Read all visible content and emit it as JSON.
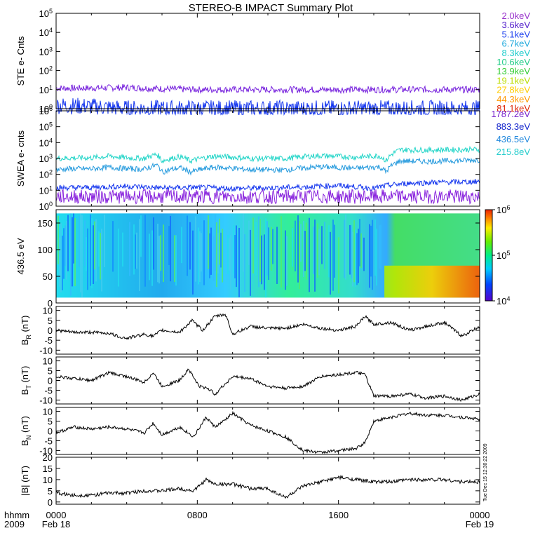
{
  "title": "STEREO-B IMPACT Summary Plot",
  "side_label": "Tue Dec 15 12:30:22 2009",
  "x_axis": {
    "left_labels": [
      "hhmm",
      "2009"
    ],
    "ticks": [
      {
        "time": 0,
        "label": "0000"
      },
      {
        "time": 8,
        "label": "0800"
      },
      {
        "time": 16,
        "label": "1600"
      },
      {
        "time": 24,
        "label": "0000"
      }
    ],
    "dates": [
      {
        "time": 0,
        "label": "Feb 18"
      },
      {
        "time": 24,
        "label": "Feb 19"
      }
    ],
    "range_hours": [
      0,
      24
    ]
  },
  "ste_legend": [
    {
      "label": "2.0keV",
      "color": "#9933cc"
    },
    {
      "label": "3.6keV",
      "color": "#5522cc"
    },
    {
      "label": "5.1keV",
      "color": "#2244ee"
    },
    {
      "label": "6.7keV",
      "color": "#22aadd"
    },
    {
      "label": "8.3keV",
      "color": "#22cccc"
    },
    {
      "label": "10.6keV",
      "color": "#22cc88"
    },
    {
      "label": "13.9keV",
      "color": "#33cc33"
    },
    {
      "label": "19.1keV",
      "color": "#bbdd00"
    },
    {
      "label": "27.8keV",
      "color": "#ffcc00"
    },
    {
      "label": "44.3keV",
      "color": "#ff9900"
    },
    {
      "label": "81.1keV",
      "color": "#dd2200"
    }
  ],
  "swea_legend": [
    {
      "label": "1787.2eV",
      "color": "#7722cc"
    },
    {
      "label": "883.3eV",
      "color": "#1122cc"
    },
    {
      "label": "436.5eV",
      "color": "#2288dd"
    },
    {
      "label": "215.8eV",
      "color": "#22cccc"
    }
  ],
  "colors": {
    "ste_purple": "#7722dd",
    "ste_blue": "#1133ee",
    "swea_cyan": "#22d5c8",
    "swea_light_blue": "#2299dd",
    "swea_blue": "#1133ee",
    "swea_purple": "#8822dd"
  },
  "chart_data": [
    {
      "type": "line",
      "ylabel": "STE e- Cnts",
      "yscale": "log",
      "ylim_exponent": [
        0,
        5
      ],
      "y_tick_labels": [
        "10^0",
        "10^1",
        "10^2",
        "10^3",
        "10^4",
        "10^5"
      ],
      "series": [
        {
          "color": "#7722dd",
          "time": [
            0,
            2,
            4,
            6,
            8,
            10,
            12,
            14,
            16,
            18,
            20,
            22,
            24
          ],
          "values": [
            12,
            12,
            13,
            11,
            10,
            10,
            10,
            10,
            10,
            10,
            10,
            10,
            10
          ]
        },
        {
          "color": "#1133ee",
          "time": [
            0,
            2,
            4,
            6,
            8,
            10,
            12,
            14,
            16,
            18,
            20,
            22,
            24
          ],
          "values": [
            1.5,
            1.3,
            1,
            1,
            1,
            1,
            1,
            1,
            1,
            1,
            1,
            1,
            1
          ]
        }
      ]
    },
    {
      "type": "line",
      "ylabel": "SWEA e- cnts",
      "yscale": "log",
      "ylim_exponent": [
        0,
        6
      ],
      "y_tick_labels": [
        "10^0",
        "10^1",
        "10^2",
        "10^3",
        "10^4",
        "10^5",
        "10^6"
      ],
      "series": [
        {
          "color": "#22d5c8",
          "time": [
            0,
            1,
            2,
            3,
            4,
            5,
            5.7,
            6,
            7,
            7.6,
            9,
            11,
            13,
            14,
            15,
            17,
            18.3,
            18.7,
            19.5,
            21,
            24
          ],
          "values": [
            1000,
            1100,
            1100,
            1400,
            1100,
            1000,
            1800,
            700,
            1300,
            700,
            1400,
            1000,
            1000,
            1300,
            1500,
            1200,
            1500,
            700,
            3500,
            3400,
            3700
          ]
        },
        {
          "color": "#2299dd",
          "time": [
            0,
            1,
            2,
            3,
            4,
            5,
            5.7,
            6,
            7,
            7.6,
            9,
            11,
            13,
            14,
            15,
            17,
            18.3,
            18.7,
            19.5,
            21,
            24
          ],
          "values": [
            200,
            230,
            220,
            280,
            230,
            210,
            380,
            140,
            260,
            140,
            280,
            200,
            190,
            250,
            300,
            240,
            300,
            140,
            700,
            650,
            800
          ]
        },
        {
          "color": "#1133ee",
          "time": [
            0,
            2,
            4,
            6,
            8,
            10,
            12,
            14,
            16,
            18,
            18.8,
            20,
            22,
            24
          ],
          "values": [
            14,
            15,
            18,
            14,
            15,
            13,
            14,
            16,
            20,
            13,
            20,
            28,
            32,
            35
          ]
        },
        {
          "color": "#8822dd",
          "time": [
            0,
            2,
            4,
            6,
            8,
            10,
            12,
            14,
            16,
            18,
            20,
            22,
            24
          ],
          "values": [
            4,
            4,
            4,
            4,
            4,
            4,
            4,
            4,
            4,
            4,
            4,
            4,
            4
          ]
        }
      ]
    },
    {
      "type": "heatmap",
      "ylabel": "436.5 eV",
      "ylim": [
        0,
        175
      ],
      "y_ticks": [
        0,
        50,
        100,
        150
      ],
      "colorbar_labels": [
        "10^4",
        "10^5",
        "10^6"
      ],
      "colorbar_colors": [
        "#5500cc",
        "#0044ff",
        "#00ccff",
        "#00ee88",
        "#66ee00",
        "#ffee00",
        "#ff8800",
        "#ee2200"
      ]
    },
    {
      "type": "line",
      "ylabel": "B_R (nT)",
      "ylabel_main": "B",
      "ylabel_sub": "R",
      "ylabel_unit": "(nT)",
      "ylim": [
        -12,
        12
      ],
      "y_ticks": [
        -10,
        -5,
        0,
        5,
        10
      ],
      "time": [
        0,
        1,
        2,
        3,
        3.5,
        4,
        5,
        5.5,
        6,
        7,
        7.7,
        8.3,
        9,
        9.6,
        10,
        11,
        12,
        13,
        14,
        15,
        16,
        17,
        17.5,
        18,
        19,
        20,
        21,
        22,
        23,
        24
      ],
      "values": [
        0,
        -1,
        -1,
        -1.5,
        -3,
        -4,
        -2,
        -3,
        0,
        -1,
        5,
        0,
        7,
        8,
        -2,
        2,
        1,
        1,
        3,
        1,
        0,
        2,
        7,
        3,
        4,
        0,
        2,
        4,
        -3,
        2
      ]
    },
    {
      "type": "line",
      "ylabel": "B_T (nT)",
      "ylabel_main": "B",
      "ylabel_sub": "T",
      "ylabel_unit": "(nT)",
      "ylim": [
        -12,
        12
      ],
      "y_ticks": [
        -10,
        -5,
        0,
        5,
        10
      ],
      "time": [
        0,
        1,
        2,
        3,
        3.5,
        4,
        5,
        5.5,
        6,
        7,
        7.5,
        8.1,
        8.6,
        9,
        10,
        11,
        12,
        13,
        14,
        15,
        16,
        17,
        17.5,
        18,
        19,
        20,
        21,
        22,
        23,
        24
      ],
      "values": [
        2,
        1,
        0,
        4,
        3,
        2,
        -1,
        4,
        -3,
        0,
        6,
        -3,
        -4,
        -7,
        2,
        1,
        -3,
        -4,
        -3,
        2,
        3,
        4,
        3,
        -8,
        -8,
        -7,
        -9,
        -8,
        -10,
        -7
      ]
    },
    {
      "type": "line",
      "ylabel": "B_N (nT)",
      "ylabel_main": "B",
      "ylabel_sub": "N",
      "ylabel_unit": "(nT)",
      "ylim": [
        -12,
        12
      ],
      "y_ticks": [
        -10,
        -5,
        0,
        5,
        10
      ],
      "time": [
        0,
        1,
        2,
        3,
        4,
        5,
        5.5,
        6,
        7,
        7.8,
        8.5,
        9,
        9.5,
        10,
        11,
        12,
        13,
        14,
        15,
        16,
        17,
        17.5,
        18,
        19,
        20,
        21,
        22,
        23,
        24
      ],
      "values": [
        -1,
        2,
        1,
        2,
        1,
        -1,
        4,
        -2,
        2,
        -3,
        7,
        2,
        5,
        9,
        3,
        0,
        -3,
        -10,
        -11,
        -10,
        -9,
        -6,
        5,
        7,
        9,
        8,
        8,
        7,
        6
      ]
    },
    {
      "type": "line",
      "ylabel": "|B| (nT)",
      "ylim": [
        -1,
        20
      ],
      "y_ticks": [
        0,
        5,
        10,
        15,
        20
      ],
      "time": [
        0,
        1,
        2,
        3,
        4,
        5,
        6,
        7,
        7.8,
        8.5,
        9,
        10,
        11,
        12,
        13,
        14,
        15,
        16,
        17,
        18,
        19,
        20,
        21,
        22,
        23,
        24
      ],
      "values": [
        4,
        3,
        3,
        4,
        4,
        5,
        5,
        6,
        5,
        10,
        8,
        8,
        6,
        6,
        2,
        7,
        9,
        11,
        10,
        9,
        9,
        10,
        10,
        10,
        9,
        9
      ]
    }
  ]
}
